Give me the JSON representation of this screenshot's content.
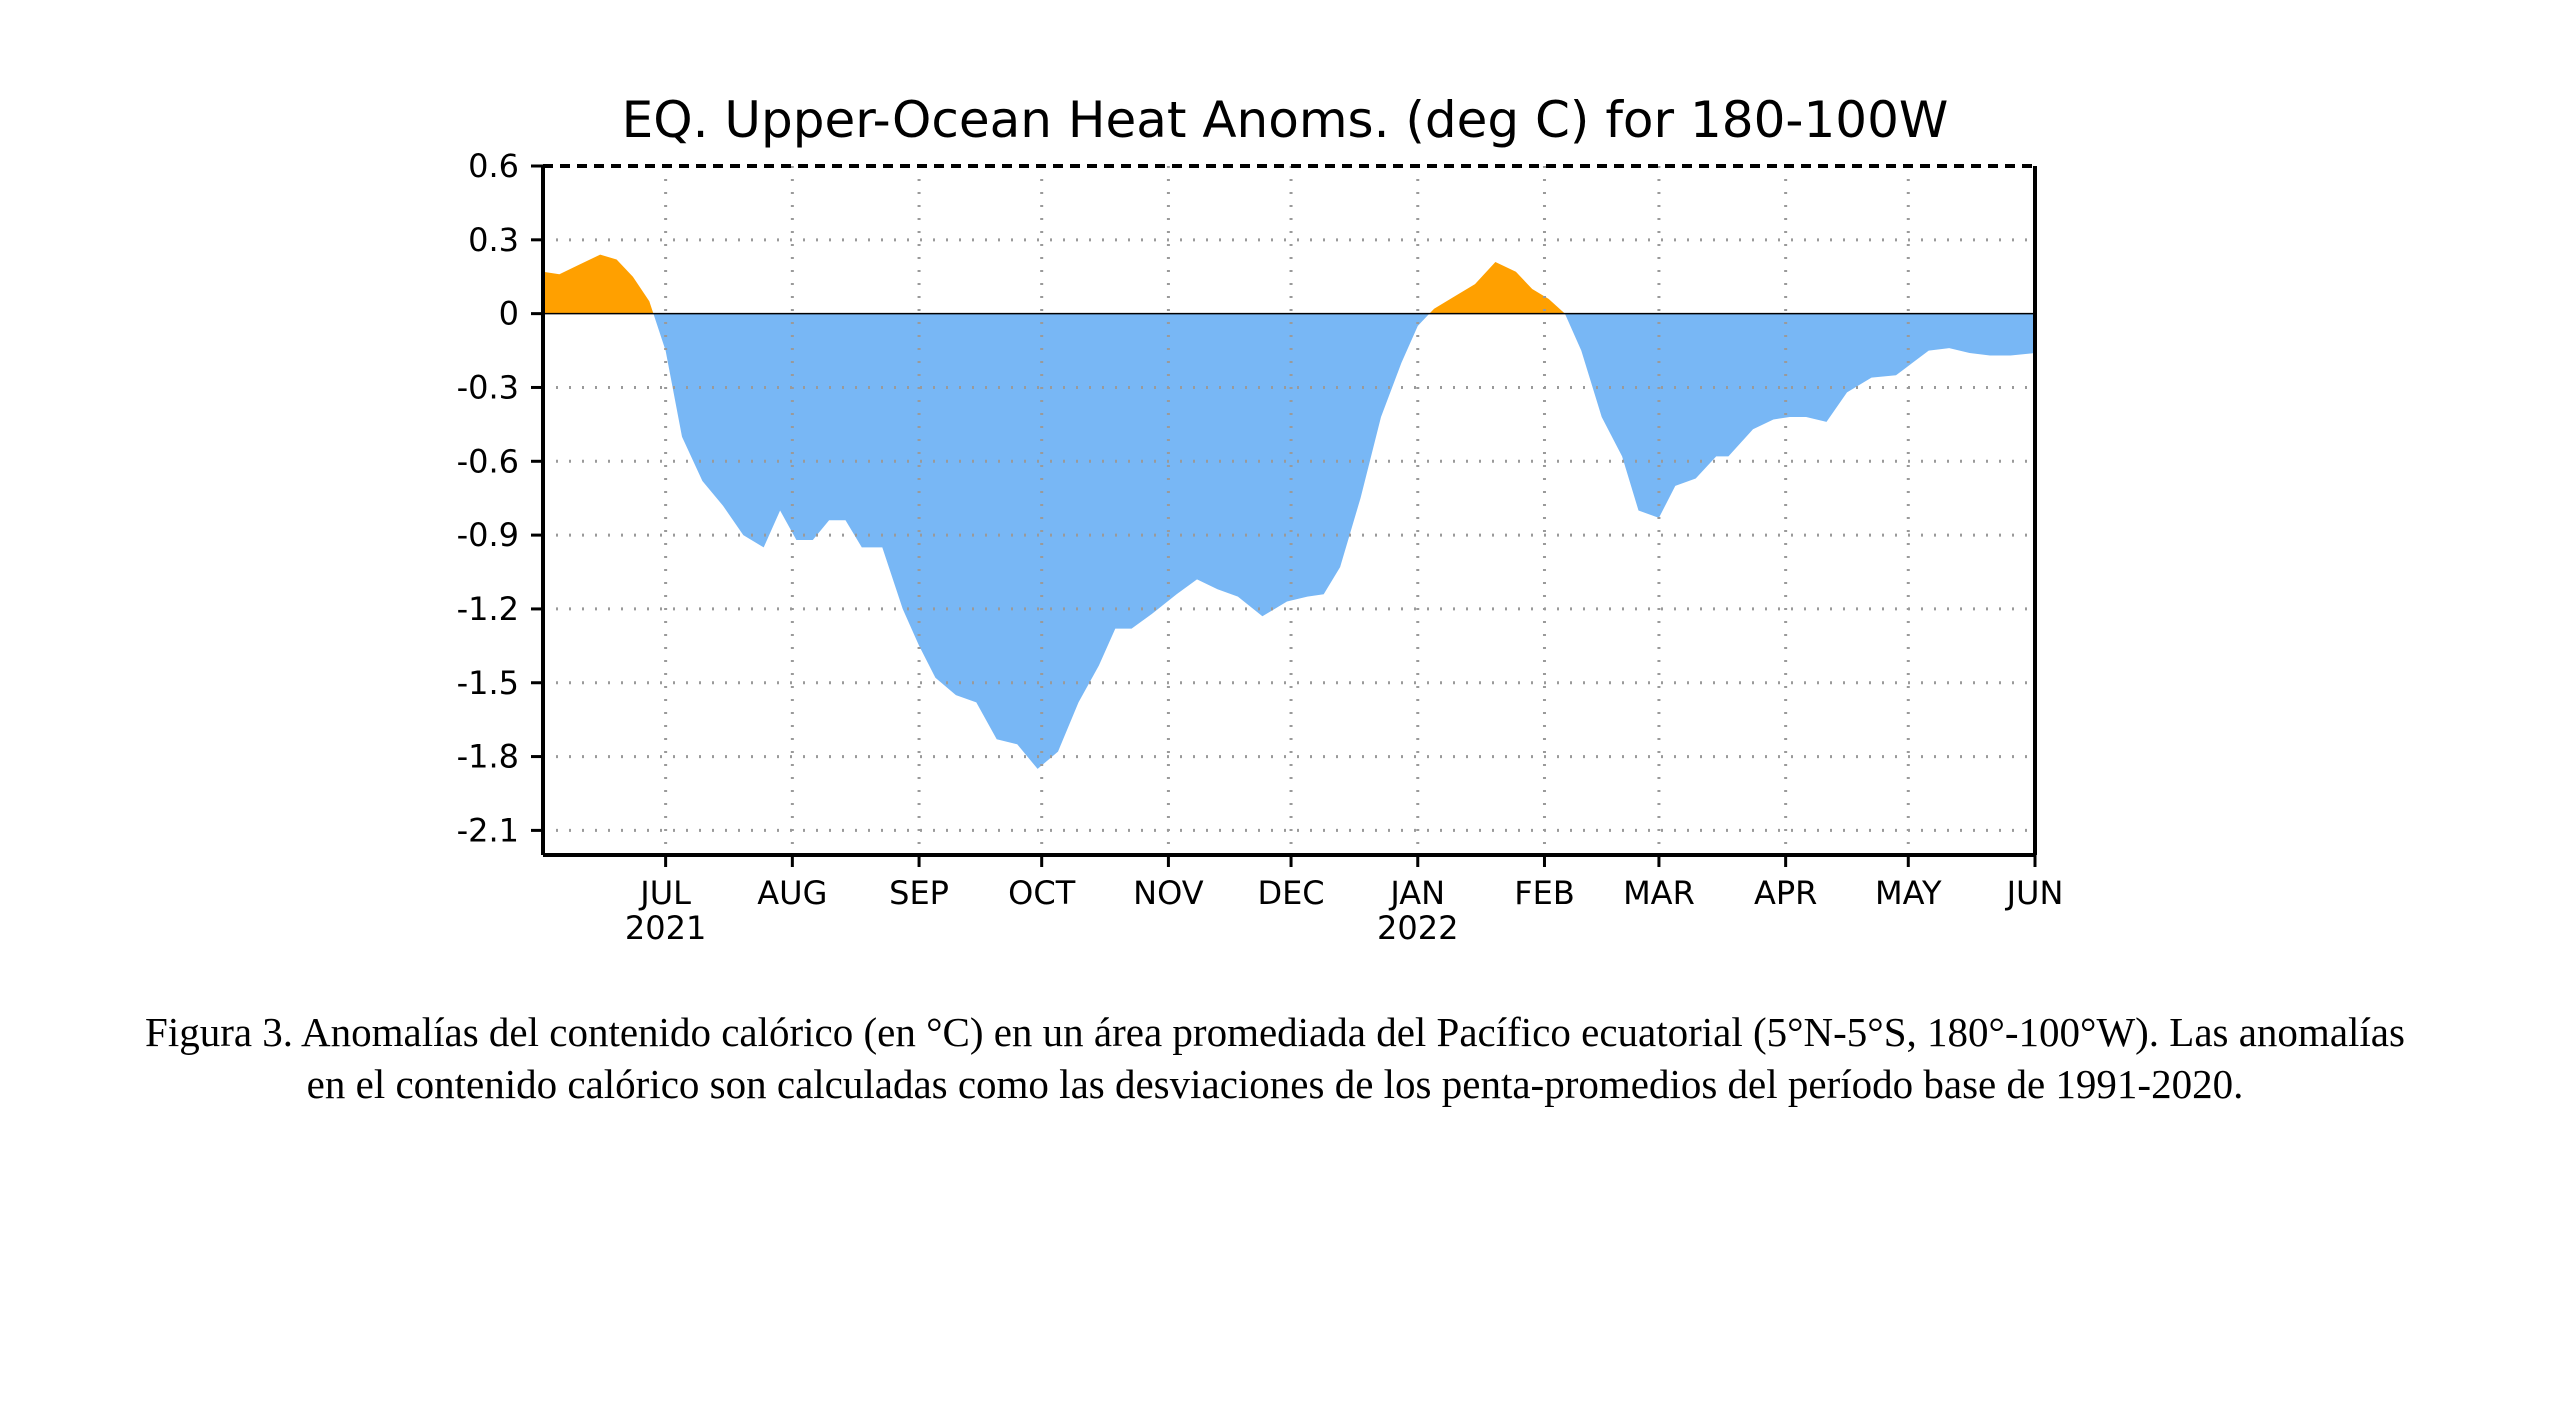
{
  "caption": "Figura 3. Anomalías del contenido calórico (en °C) en un área promediada del Pacífico ecuatorial (5°N-5°S, 180°-100°W). Las anomalías en el contenido calórico son calculadas como las desviaciones de los penta-promedios del período base de 1991-2020.",
  "chart_data": {
    "type": "area",
    "title": "EQ. Upper-Ocean Heat Anoms. (deg C) for 180-100W",
    "xlabel": "",
    "ylabel": "",
    "ylim": [
      -2.2,
      0.6
    ],
    "xlim": [
      "2021-06-01",
      "2022-06-01"
    ],
    "yticks": [
      0.6,
      0.3,
      0,
      -0.3,
      -0.6,
      -0.9,
      -1.2,
      -1.5,
      -1.8,
      -2.1
    ],
    "ytick_labels": [
      "0.6",
      "0.3",
      "0",
      "-0.3",
      "-0.6",
      "-0.9",
      "-1.2",
      "-1.5",
      "-1.8",
      "-2.1"
    ],
    "xticks": [
      {
        "date": "2021-07-01",
        "label": "JUL",
        "year": "2021"
      },
      {
        "date": "2021-08-01",
        "label": "AUG",
        "year": ""
      },
      {
        "date": "2021-09-01",
        "label": "SEP",
        "year": ""
      },
      {
        "date": "2021-10-01",
        "label": "OCT",
        "year": ""
      },
      {
        "date": "2021-11-01",
        "label": "NOV",
        "year": ""
      },
      {
        "date": "2021-12-01",
        "label": "DEC",
        "year": ""
      },
      {
        "date": "2022-01-01",
        "label": "JAN",
        "year": "2022"
      },
      {
        "date": "2022-02-01",
        "label": "FEB",
        "year": ""
      },
      {
        "date": "2022-03-01",
        "label": "MAR",
        "year": ""
      },
      {
        "date": "2022-04-01",
        "label": "APR",
        "year": ""
      },
      {
        "date": "2022-05-01",
        "label": "MAY",
        "year": ""
      },
      {
        "date": "2022-06-01",
        "label": "JUN",
        "year": ""
      }
    ],
    "grid": true,
    "positive_color": "#ffa000",
    "negative_color": "#78b7f5",
    "series": [
      {
        "x": [
          "2021-06-01",
          "2021-06-05",
          "2021-06-10",
          "2021-06-15",
          "2021-06-19",
          "2021-06-23",
          "2021-06-27",
          "2021-07-01",
          "2021-07-05",
          "2021-07-10",
          "2021-07-15",
          "2021-07-20",
          "2021-07-25",
          "2021-07-29",
          "2021-08-02",
          "2021-08-06",
          "2021-08-10",
          "2021-08-14",
          "2021-08-18",
          "2021-08-23",
          "2021-08-28",
          "2021-09-01",
          "2021-09-05",
          "2021-09-10",
          "2021-09-15",
          "2021-09-20",
          "2021-09-25",
          "2021-09-30",
          "2021-10-05",
          "2021-10-10",
          "2021-10-15",
          "2021-10-19",
          "2021-10-23",
          "2021-10-28",
          "2021-11-03",
          "2021-11-08",
          "2021-11-13",
          "2021-11-18",
          "2021-11-24",
          "2021-11-30",
          "2021-12-05",
          "2021-12-09",
          "2021-12-13",
          "2021-12-18",
          "2021-12-23",
          "2021-12-28",
          "2022-01-01",
          "2022-01-05",
          "2022-01-10",
          "2022-01-15",
          "2022-01-20",
          "2022-01-25",
          "2022-01-29",
          "2022-02-02",
          "2022-02-06",
          "2022-02-10",
          "2022-02-15",
          "2022-02-20",
          "2022-02-24",
          "2022-03-01",
          "2022-03-05",
          "2022-03-10",
          "2022-03-15",
          "2022-03-18",
          "2022-03-24",
          "2022-03-29",
          "2022-04-02",
          "2022-04-06",
          "2022-04-11",
          "2022-04-16",
          "2022-04-22",
          "2022-04-28",
          "2022-05-02",
          "2022-05-06",
          "2022-05-11",
          "2022-05-16",
          "2022-05-21",
          "2022-05-26",
          "2022-06-01"
        ],
        "y": [
          0.17,
          0.16,
          0.2,
          0.24,
          0.22,
          0.15,
          0.05,
          -0.15,
          -0.5,
          -0.68,
          -0.78,
          -0.9,
          -0.95,
          -0.8,
          -0.92,
          -0.92,
          -0.84,
          -0.84,
          -0.95,
          -0.95,
          -1.2,
          -1.35,
          -1.48,
          -1.55,
          -1.58,
          -1.73,
          -1.75,
          -1.85,
          -1.78,
          -1.58,
          -1.43,
          -1.28,
          -1.28,
          -1.22,
          -1.14,
          -1.08,
          -1.12,
          -1.15,
          -1.23,
          -1.17,
          -1.15,
          -1.14,
          -1.03,
          -0.75,
          -0.42,
          -0.2,
          -0.05,
          0.02,
          0.07,
          0.12,
          0.21,
          0.17,
          0.1,
          0.06,
          0.0,
          -0.15,
          -0.42,
          -0.58,
          -0.8,
          -0.83,
          -0.7,
          -0.67,
          -0.58,
          -0.58,
          -0.47,
          -0.43,
          -0.42,
          -0.42,
          -0.44,
          -0.32,
          -0.26,
          -0.25,
          -0.2,
          -0.15,
          -0.14,
          -0.16,
          -0.17,
          -0.17,
          -0.16
        ]
      }
    ]
  }
}
